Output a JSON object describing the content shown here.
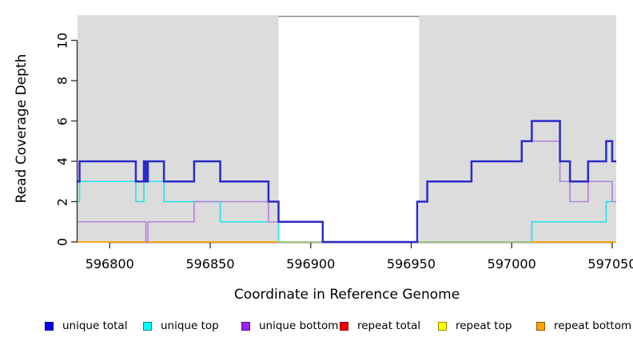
{
  "axes": {
    "x": {
      "label": "Coordinate in Reference Genome",
      "ticks": [
        596800,
        596850,
        596900,
        596950,
        597000,
        597050
      ]
    },
    "y": {
      "label": "Read Coverage Depth",
      "ticks": [
        0,
        2,
        4,
        6,
        8,
        10
      ]
    }
  },
  "legend": [
    {
      "label": "unique total",
      "color": "#0000EE"
    },
    {
      "label": "unique top",
      "color": "#00FFFF"
    },
    {
      "label": "unique bottom",
      "color": "#A020F0"
    },
    {
      "label": "repeat total",
      "color": "#EE0000"
    },
    {
      "label": "repeat top",
      "color": "#FFFF00"
    },
    {
      "label": "repeat bottom",
      "color": "#FFA500"
    }
  ],
  "colors": {
    "background": "#FFFFFF",
    "panel_shading": "#DCDCDC",
    "gap_top_border": "#888888",
    "axis": "#2A2A2A",
    "text": "#000000",
    "overlap_green": "#8FCE8F"
  },
  "chart_data": {
    "type": "line",
    "subtype": "step-coverage",
    "title": "",
    "xlabel": "Coordinate in Reference Genome",
    "ylabel": "Read Coverage Depth",
    "xlim": [
      596784,
      597052
    ],
    "ylim": [
      0,
      11.25
    ],
    "x_ticks": [
      596800,
      596850,
      596900,
      596950,
      597000,
      597050
    ],
    "y_ticks": [
      0,
      2,
      4,
      6,
      8,
      10
    ],
    "grid": false,
    "legend_position": "bottom",
    "shaded_regions": [
      [
        596784,
        596884
      ],
      [
        596954,
        597052
      ]
    ],
    "unshaded_gap": [
      596884,
      596954
    ],
    "series": [
      {
        "name": "unique total",
        "color": "#2B2BC8",
        "width": 2.5,
        "steps": [
          [
            596784,
            3
          ],
          [
            596785,
            4
          ],
          [
            596813,
            3
          ],
          [
            596817,
            4
          ],
          [
            596818,
            3
          ],
          [
            596819,
            4
          ],
          [
            596827,
            3
          ],
          [
            596842,
            4
          ],
          [
            596855,
            3
          ],
          [
            596879,
            2
          ],
          [
            596884,
            1
          ],
          [
            596906,
            0
          ],
          [
            596953,
            2
          ],
          [
            596958,
            3
          ],
          [
            596980,
            4
          ],
          [
            597005,
            5
          ],
          [
            597010,
            6
          ],
          [
            597024,
            4
          ],
          [
            597029,
            3
          ],
          [
            597038,
            4
          ],
          [
            597047,
            5
          ],
          [
            597050,
            4
          ]
        ]
      },
      {
        "name": "unique top",
        "color": "#1FE4EA",
        "width": 1.6,
        "steps": [
          [
            596784,
            2
          ],
          [
            596785,
            3
          ],
          [
            596813,
            2
          ],
          [
            596817,
            3
          ],
          [
            596827,
            2
          ],
          [
            596855,
            1
          ],
          [
            596884,
            0
          ],
          [
            597010,
            1
          ],
          [
            597047,
            2
          ]
        ]
      },
      {
        "name": "unique bottom",
        "color": "#B182DC",
        "width": 1.6,
        "steps": [
          [
            596784,
            1
          ],
          [
            596818,
            0
          ],
          [
            596819,
            1
          ],
          [
            596842,
            2
          ],
          [
            596879,
            1
          ],
          [
            596906,
            0
          ],
          [
            596953,
            2
          ],
          [
            596958,
            3
          ],
          [
            596980,
            4
          ],
          [
            597005,
            5
          ],
          [
            597024,
            3
          ],
          [
            597029,
            2
          ],
          [
            597038,
            3
          ],
          [
            597050,
            2
          ]
        ]
      },
      {
        "name": "repeat total",
        "color": "#DD0000",
        "width": 1.6,
        "steps": [
          [
            596784,
            0
          ]
        ]
      },
      {
        "name": "repeat top",
        "color": "#FFFF00",
        "width": 1.6,
        "steps": [
          [
            596784,
            0
          ]
        ]
      },
      {
        "name": "repeat bottom",
        "color": "#FFA405",
        "width": 1.6,
        "steps": [
          [
            596784,
            0
          ]
        ]
      }
    ]
  }
}
